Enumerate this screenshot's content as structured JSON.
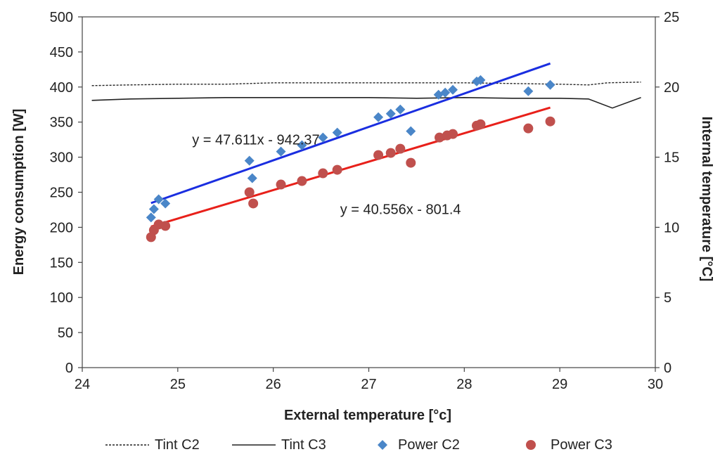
{
  "chart_data": {
    "type": "scatter",
    "xlabel": "External temperature  [°c]",
    "ylabel": "Energy consumption [W]",
    "y2label": "Internal temperature  [°C]",
    "xlim": [
      24,
      30
    ],
    "ylim": [
      0,
      500
    ],
    "y2lim": [
      0,
      25
    ],
    "x_ticks": [
      "24",
      "25",
      "26",
      "27",
      "28",
      "29",
      "30"
    ],
    "y_ticks": [
      "0",
      "50",
      "100",
      "150",
      "200",
      "250",
      "300",
      "350",
      "400",
      "450",
      "500"
    ],
    "y2_ticks": [
      "0",
      "5",
      "10",
      "15",
      "20",
      "25"
    ],
    "grid": false,
    "legend_position": "bottom",
    "series": [
      {
        "name": "Tint C2",
        "axis": "right",
        "kind": "line",
        "style": "dotted",
        "color": "#222222",
        "points": [
          [
            24.1,
            20.1
          ],
          [
            24.5,
            20.15
          ],
          [
            25.0,
            20.2
          ],
          [
            25.5,
            20.2
          ],
          [
            26.0,
            20.3
          ],
          [
            26.5,
            20.3
          ],
          [
            27.0,
            20.3
          ],
          [
            27.5,
            20.3
          ],
          [
            28.0,
            20.3
          ],
          [
            28.5,
            20.25
          ],
          [
            29.0,
            20.2
          ],
          [
            29.3,
            20.15
          ],
          [
            29.5,
            20.3
          ],
          [
            29.85,
            20.35
          ]
        ]
      },
      {
        "name": "Tint C3",
        "axis": "right",
        "kind": "line",
        "style": "solid",
        "color": "#222222",
        "points": [
          [
            24.1,
            19.05
          ],
          [
            24.5,
            19.15
          ],
          [
            25.0,
            19.2
          ],
          [
            25.5,
            19.25
          ],
          [
            26.0,
            19.25
          ],
          [
            26.5,
            19.25
          ],
          [
            27.0,
            19.25
          ],
          [
            27.5,
            19.2
          ],
          [
            28.0,
            19.25
          ],
          [
            28.5,
            19.2
          ],
          [
            29.0,
            19.2
          ],
          [
            29.3,
            19.15
          ],
          [
            29.55,
            18.5
          ],
          [
            29.85,
            19.25
          ]
        ]
      },
      {
        "name": "Power C2",
        "axis": "left",
        "kind": "marker",
        "marker": "diamond",
        "color": "#4a86c8",
        "points": [
          [
            24.72,
            214
          ],
          [
            24.75,
            226
          ],
          [
            24.8,
            240
          ],
          [
            24.87,
            234
          ],
          [
            25.75,
            295
          ],
          [
            25.78,
            270
          ],
          [
            26.08,
            308
          ],
          [
            26.3,
            317
          ],
          [
            26.52,
            328
          ],
          [
            26.67,
            335
          ],
          [
            27.1,
            357
          ],
          [
            27.23,
            362
          ],
          [
            27.33,
            368
          ],
          [
            27.44,
            337
          ],
          [
            27.73,
            389
          ],
          [
            27.8,
            392
          ],
          [
            27.88,
            396
          ],
          [
            28.13,
            408
          ],
          [
            28.17,
            410
          ],
          [
            28.67,
            394
          ],
          [
            28.9,
            403
          ]
        ]
      },
      {
        "name": "Power C3",
        "axis": "left",
        "kind": "marker",
        "marker": "circle",
        "color": "#c0504d",
        "points": [
          [
            24.72,
            186
          ],
          [
            24.75,
            196
          ],
          [
            24.8,
            204
          ],
          [
            24.87,
            202
          ],
          [
            25.75,
            250
          ],
          [
            25.79,
            234
          ],
          [
            26.08,
            261
          ],
          [
            26.3,
            266
          ],
          [
            26.52,
            277
          ],
          [
            26.67,
            282
          ],
          [
            27.1,
            303
          ],
          [
            27.23,
            306
          ],
          [
            27.33,
            312
          ],
          [
            27.44,
            292
          ],
          [
            27.74,
            328
          ],
          [
            27.82,
            331
          ],
          [
            27.88,
            333
          ],
          [
            28.13,
            345
          ],
          [
            28.17,
            347
          ],
          [
            28.67,
            341
          ],
          [
            28.9,
            351
          ]
        ]
      }
    ],
    "trendlines": [
      {
        "series": "Power C2",
        "slope": 47.611,
        "intercept": -942.37,
        "x_range": [
          24.72,
          28.9
        ],
        "color": "#1a2ee0"
      },
      {
        "series": "Power C3",
        "slope": 40.556,
        "intercept": -801.4,
        "x_range": [
          24.72,
          28.9
        ],
        "color": "#e8201a"
      }
    ],
    "annotations": [
      {
        "text": "y = 47.611x - 942.37",
        "x": 25.15,
        "y": 318
      },
      {
        "text": "y = 40.556x - 801.4",
        "x": 26.7,
        "y": 219
      }
    ]
  }
}
